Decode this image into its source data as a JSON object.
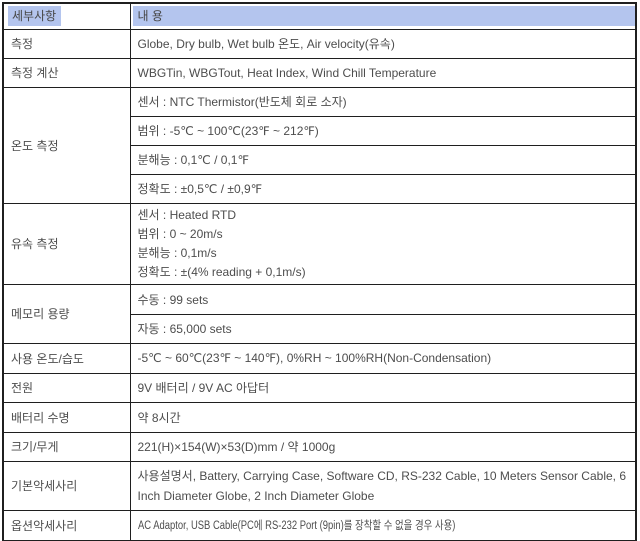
{
  "spec_table": {
    "header": {
      "details": "세부사항",
      "content": "내 용"
    },
    "rows": [
      {
        "label": "측정",
        "value": "Globe, Dry bulb, Wet bulb 온도, Air velocity(유속)"
      },
      {
        "label": "측정 계산",
        "value": "WBGTin, WBGTout, Heat Index, Wind Chill Temperature"
      },
      {
        "label": "온도 측정",
        "subrows": [
          "센서 : NTC Thermistor(반도체 회로 소자)",
          "범위 : -5℃ ~ 100℃(23℉ ~ 212℉)",
          "분해능 : 0,1℃ / 0,1℉",
          "정확도 : ±0,5℃ / ±0,9℉"
        ]
      },
      {
        "label": "유속 측정",
        "lines": [
          "센서 : Heated RTD",
          "범위 : 0 ~ 20m/s",
          "분해능 : 0,1m/s",
          "정확도 : ±(4% reading + 0,1m/s)"
        ]
      },
      {
        "label": "메모리 용량",
        "subrows": [
          "수동 : 99 sets",
          "자동 : 65,000 sets"
        ]
      },
      {
        "label": "사용 온도/습도",
        "value": "-5℃ ~ 60℃(23℉ ~ 140℉), 0%RH ~ 100%RH(Non-Condensation)"
      },
      {
        "label": "전원",
        "value": "9V 배터리 / 9V AC 아답터"
      },
      {
        "label": "배터리 수명",
        "value": "약 8시간"
      },
      {
        "label": "크기/무게",
        "value": "221(H)×154(W)×53(D)mm / 약 1000g"
      },
      {
        "label": "기본악세사리",
        "value": "사용설명서, Battery, Carrying Case, Software CD, RS-232 Cable, 10 Meters Sensor Cable, 6 Inch Diameter Globe, 2 Inch Diameter Globe"
      },
      {
        "label": "옵션악세사리",
        "value": "AC Adaptor, USB Cable(PC에 RS-232 Port (9pin)를 장착할 수 없을 경우 사용)"
      }
    ],
    "colors": {
      "header_highlight": "#b4c5ee",
      "border": "#1f1f1f",
      "text": "#4d4d4d",
      "background": "#ffffff"
    }
  }
}
